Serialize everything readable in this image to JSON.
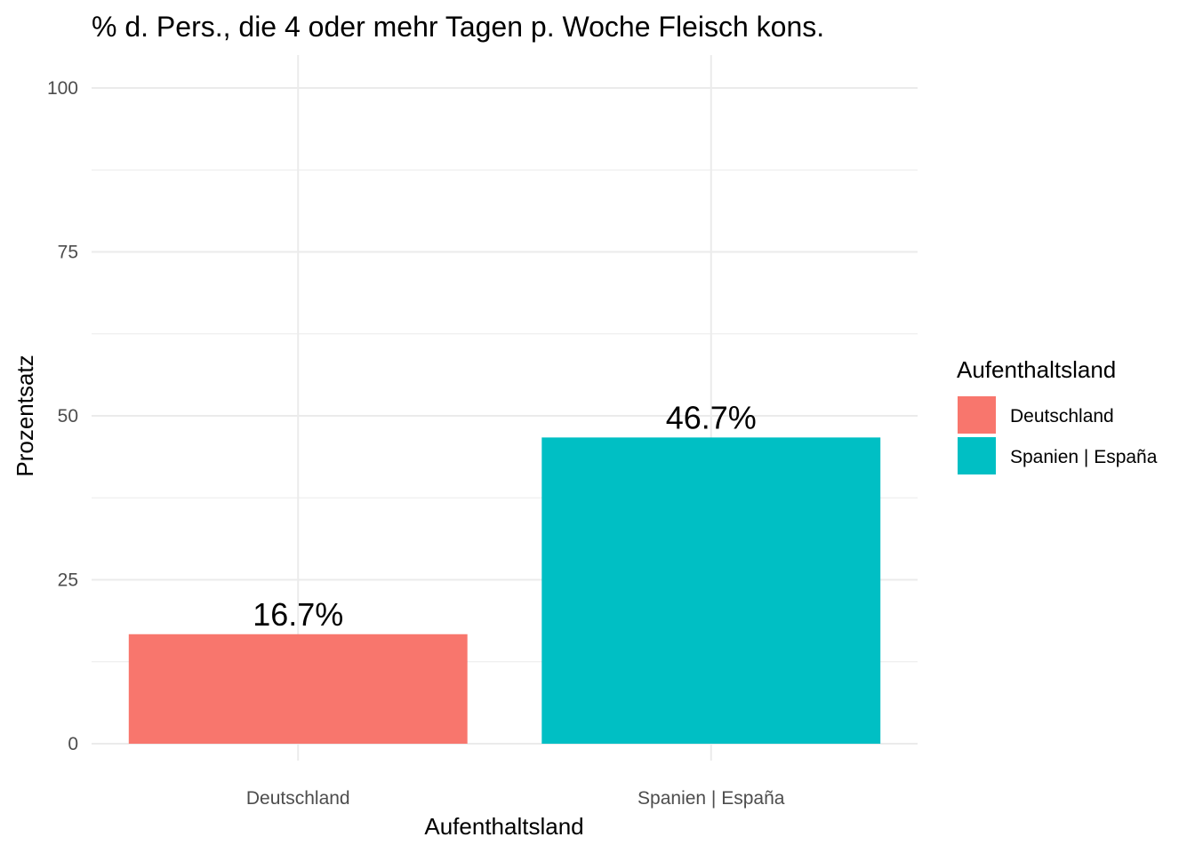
{
  "chart_data": {
    "type": "bar",
    "title": "% d. Pers., die 4 oder mehr Tagen p. Woche Fleisch kons.",
    "xlabel": "Aufenthaltsland",
    "ylabel": "Prozentsatz",
    "categories": [
      "Deutschland",
      "Spanien | España"
    ],
    "values": [
      16.7,
      46.7
    ],
    "value_labels": [
      "16.7%",
      "46.7%"
    ],
    "colors": [
      "#F8766D",
      "#00BFC4"
    ],
    "ylim": [
      0,
      100
    ],
    "yticks": [
      "0",
      "25",
      "50",
      "75",
      "100"
    ],
    "ytick_values": [
      0,
      25,
      50,
      75,
      100
    ],
    "grid": true,
    "legend": {
      "title": "Aufenthaltsland",
      "position": "right",
      "entries": [
        "Deutschland",
        "Spanien | España"
      ]
    }
  }
}
